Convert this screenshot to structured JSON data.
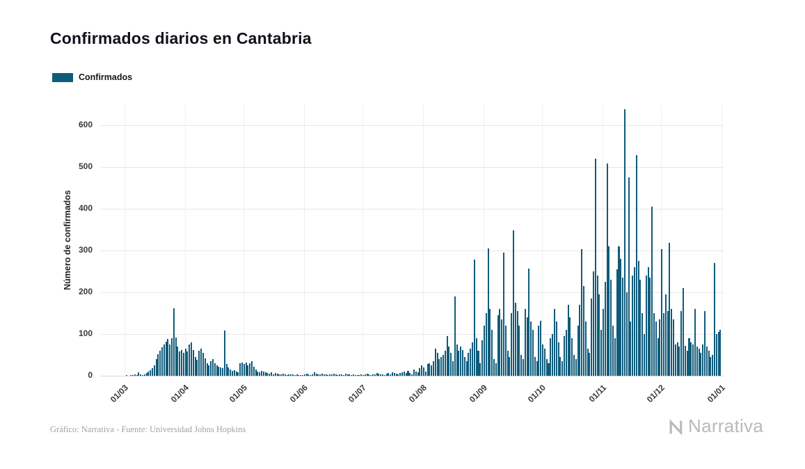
{
  "page": {
    "title": "Confirmados diarios en Cantabria",
    "footer_credit": "Gráfico: Narrativa - Fuente: Universidad Johns Hopkins",
    "brand": "Narrativa"
  },
  "legend": {
    "label": "Confirmados",
    "color": "#0f5b7a"
  },
  "chart_data": {
    "type": "bar",
    "title": "Confirmados diarios en Cantabria",
    "ylabel": "Número de confirmados",
    "xlabel": "",
    "ylim": [
      0,
      650
    ],
    "yticks": [
      0,
      100,
      200,
      300,
      400,
      500,
      600
    ],
    "grid": "horizontal",
    "legend_position": "top-left",
    "axis_lead_in_days": 12,
    "xticks": [
      {
        "label": "01/03",
        "day": 0
      },
      {
        "label": "01/04",
        "day": 31
      },
      {
        "label": "01/05",
        "day": 61
      },
      {
        "label": "01/06",
        "day": 92
      },
      {
        "label": "01/07",
        "day": 122
      },
      {
        "label": "01/08",
        "day": 153
      },
      {
        "label": "01/09",
        "day": 184
      },
      {
        "label": "01/10",
        "day": 214
      },
      {
        "label": "01/11",
        "day": 245
      },
      {
        "label": "01/12",
        "day": 275
      },
      {
        "label": "01/01",
        "day": 306
      }
    ],
    "series": [
      {
        "name": "Confirmados",
        "color": "#0f5b7a",
        "start_label": "01/03",
        "unit": "confirmados/día",
        "values": [
          0,
          1,
          0,
          2,
          1,
          3,
          2,
          8,
          3,
          2,
          4,
          6,
          10,
          14,
          18,
          25,
          40,
          52,
          60,
          68,
          75,
          82,
          88,
          75,
          90,
          162,
          92,
          70,
          58,
          62,
          55,
          65,
          58,
          75,
          80,
          62,
          45,
          38,
          60,
          65,
          55,
          42,
          30,
          25,
          35,
          40,
          30,
          25,
          22,
          20,
          18,
          108,
          28,
          20,
          15,
          12,
          14,
          10,
          8,
          30,
          32,
          28,
          32,
          25,
          30,
          35,
          22,
          15,
          10,
          8,
          12,
          10,
          8,
          6,
          5,
          8,
          4,
          6,
          5,
          4,
          3,
          5,
          4,
          2,
          3,
          4,
          3,
          2,
          3,
          2,
          1,
          2,
          3,
          5,
          4,
          2,
          3,
          8,
          5,
          4,
          3,
          5,
          4,
          3,
          2,
          3,
          4,
          5,
          3,
          2,
          4,
          3,
          2,
          5,
          4,
          3,
          2,
          3,
          2,
          1,
          2,
          3,
          2,
          3,
          5,
          4,
          2,
          3,
          4,
          6,
          5,
          3,
          4,
          2,
          5,
          6,
          4,
          8,
          6,
          5,
          3,
          6,
          8,
          10,
          7,
          12,
          6,
          4,
          15,
          10,
          8,
          18,
          25,
          20,
          10,
          28,
          30,
          25,
          35,
          65,
          55,
          40,
          45,
          50,
          60,
          95,
          70,
          55,
          35,
          190,
          75,
          60,
          70,
          62,
          45,
          35,
          55,
          65,
          80,
          278,
          90,
          60,
          30,
          85,
          120,
          150,
          305,
          160,
          110,
          40,
          30,
          145,
          160,
          135,
          295,
          120,
          60,
          45,
          150,
          348,
          175,
          155,
          120,
          50,
          40,
          160,
          140,
          257,
          130,
          110,
          45,
          35,
          120,
          131,
          75,
          65,
          40,
          30,
          90,
          100,
          160,
          130,
          80,
          45,
          35,
          95,
          110,
          170,
          140,
          90,
          50,
          40,
          120,
          170,
          303,
          215,
          130,
          65,
          55,
          185,
          250,
          520,
          240,
          195,
          110,
          160,
          225,
          508,
          310,
          230,
          120,
          90,
          255,
          310,
          280,
          235,
          638,
          200,
          475,
          130,
          240,
          260,
          528,
          275,
          230,
          150,
          100,
          240,
          260,
          235,
          405,
          150,
          130,
          90,
          135,
          303,
          150,
          195,
          155,
          318,
          160,
          135,
          75,
          80,
          70,
          155,
          210,
          72,
          60,
          90,
          80,
          75,
          160,
          70,
          65,
          55,
          75,
          155,
          70,
          60,
          45,
          50,
          270,
          100,
          105,
          110
        ]
      }
    ]
  }
}
